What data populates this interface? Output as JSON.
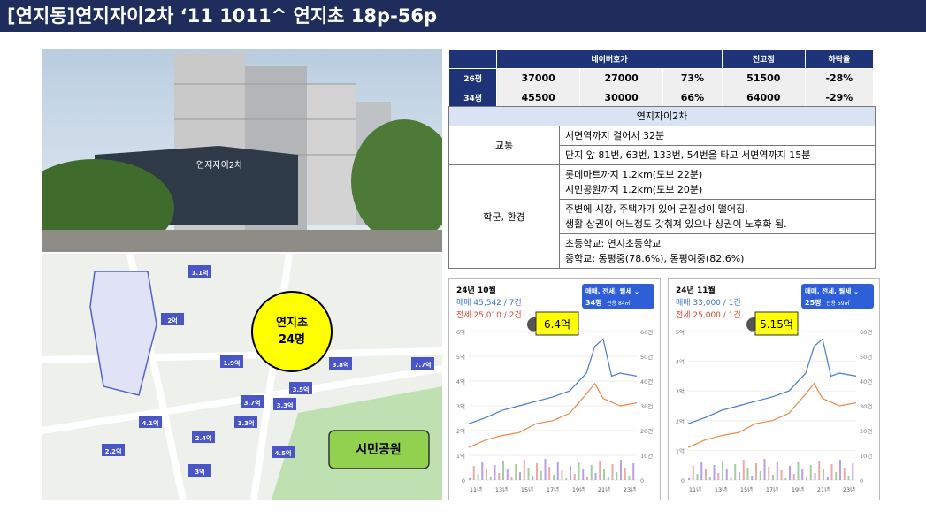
{
  "header": {
    "title": "[연지동]연지자이2차 ‘11 1011^ 연지초 18p-56p"
  },
  "price_table": {
    "headers": [
      "네이버호가",
      "전고점",
      "하락율"
    ],
    "rows": [
      [
        "26평",
        "37000",
        "27000",
        "73%",
        "51500",
        "-28%"
      ],
      [
        "34평",
        "45500",
        "30000",
        "66%",
        "64000",
        "-29%"
      ]
    ]
  },
  "info_table": {
    "title": "연지자이2차",
    "rows": [
      {
        "label": "교통",
        "cells": [
          [
            "서면역까지 걸어서 32분"
          ],
          [
            "단지 앞 81번, 63번, 133번, 54번을 타고 서면역까지 15분"
          ]
        ]
      },
      {
        "label": "학군, 환경",
        "cells": [
          [
            "롯데마트까지 1.2km(도보 22분)",
            "시민공원까지 1.2km(도보 20분)"
          ],
          [
            "주변에 시장, 주택가가 있어 균질성이 떨어짐.",
            "생활 상권이 어느정도 갖춰져 있으나 상권이 노후화 됨."
          ],
          [
            "초등학교: 연지초등학교",
            "중학교: 동평중(78.6%), 동평여중(82.6%)"
          ]
        ]
      }
    ]
  },
  "map": {
    "school": [
      "연지초",
      "24명"
    ],
    "park": "시민공원",
    "badges": [
      "1.1억",
      "2억",
      "1.9억",
      "3.7억",
      "3.3억",
      "3.5억",
      "3.8억",
      "7.7억",
      "1.3억",
      "2.4억",
      "4.1억",
      "2.2억",
      "4.5억",
      "3억"
    ]
  },
  "charts": [
    {
      "period": "24년 10월",
      "sale": "매매 45,542 / 7건",
      "jeonse": "전세 25,010 / 2건",
      "filter": "매매, 전세, 월세 ⌄",
      "size": "34평",
      "area": "전용 84㎡",
      "callout": "6.4억",
      "y_left": [
        "6억",
        "5억",
        "4억",
        "3억",
        "2억",
        "1억",
        "0"
      ],
      "y_right": [
        "60건",
        "50건",
        "40건",
        "30건",
        "20건",
        "10건",
        "0"
      ],
      "x": [
        "11년",
        "13년",
        "15년",
        "17년",
        "19년",
        "21년",
        "23년"
      ]
    },
    {
      "period": "24년 11월",
      "sale": "매매 33,000 / 1건",
      "jeonse": "전세 25,000 / 1건",
      "filter": "매매, 전세, 월세 ⌄",
      "size": "25평",
      "area": "전용 59㎡",
      "callout": "5.15억",
      "y_left": [
        "5억",
        "4억",
        "3억",
        "2억",
        "1억",
        "0"
      ],
      "y_right": [
        "60건",
        "50건",
        "40건",
        "30건",
        "20건",
        "10건",
        "0"
      ],
      "x": [
        "11년",
        "13년",
        "15년",
        "17년",
        "19년",
        "21년",
        "23년"
      ]
    }
  ]
}
